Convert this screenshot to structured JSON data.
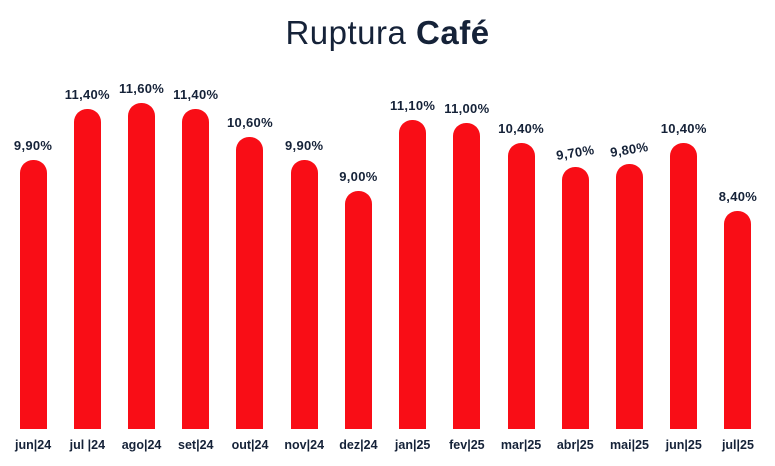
{
  "title": {
    "regular": "Ruptura ",
    "bold": "Café"
  },
  "colors": {
    "background": "#ffffff",
    "bar": "#f90d16",
    "text": "#152238"
  },
  "chart_data": {
    "type": "bar",
    "title": "Ruptura Café",
    "categories": [
      "jun|24",
      "jul |24",
      "ago|24",
      "set|24",
      "out|24",
      "nov|24",
      "dez|24",
      "jan|25",
      "fev|25",
      "mar|25",
      "abr|25",
      "mai|25",
      "jun|25",
      "jul|25"
    ],
    "values": [
      9.9,
      11.4,
      11.6,
      11.4,
      10.6,
      9.9,
      9.0,
      11.1,
      11.0,
      10.4,
      9.7,
      9.8,
      10.4,
      8.4
    ],
    "value_labels": [
      "9,90%",
      "11,40%",
      "11,60%",
      "11,40%",
      "10,60%",
      "9,90%",
      "9,00%",
      "11,10%",
      "11,00%",
      "10,40%",
      "9,70%",
      "9,80%",
      "10,40%",
      "8,40%"
    ],
    "tilted_label_indexes": [
      10,
      11
    ],
    "unit": "%",
    "xlabel": "",
    "ylabel": "",
    "ylim": [
      2,
      12.5
    ],
    "grid": false,
    "legend": null,
    "bar_color": "#f90d16",
    "label_color": "#152238"
  }
}
